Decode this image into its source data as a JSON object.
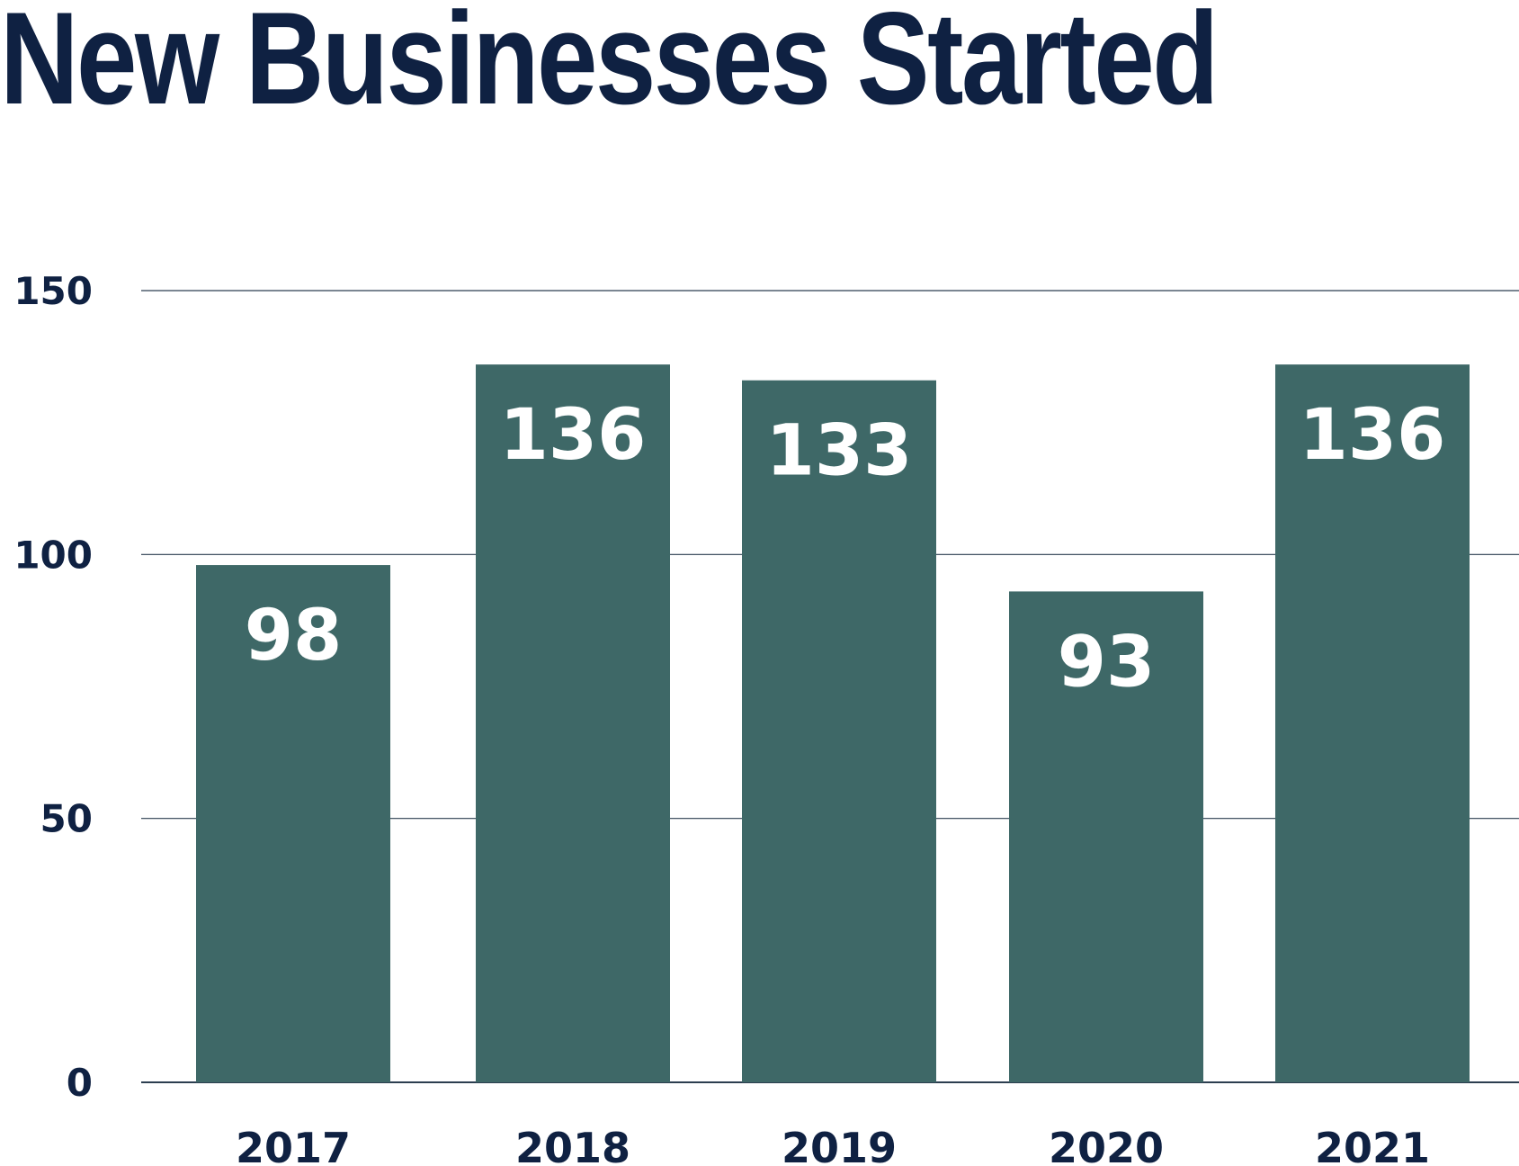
{
  "chart_data": {
    "type": "bar",
    "title": "New Businesses Started",
    "xlabel": "",
    "ylabel": "",
    "categories": [
      "2017",
      "2018",
      "2019",
      "2020",
      "2021"
    ],
    "values": [
      98,
      136,
      133,
      93,
      136
    ],
    "data_labels": [
      "98",
      "136",
      "133",
      "93",
      "136"
    ],
    "ylim": [
      0,
      150
    ],
    "yticks": [
      0,
      50,
      100,
      150
    ],
    "ytick_labels": [
      "0",
      "50",
      "100",
      "150"
    ],
    "grid": true,
    "legend": "none",
    "colors": {
      "bar": "#3e6867",
      "title": "#0f2142",
      "axis_text": "#0f2142",
      "gridline": "#2c3e50",
      "value_label": "#ffffff"
    }
  }
}
